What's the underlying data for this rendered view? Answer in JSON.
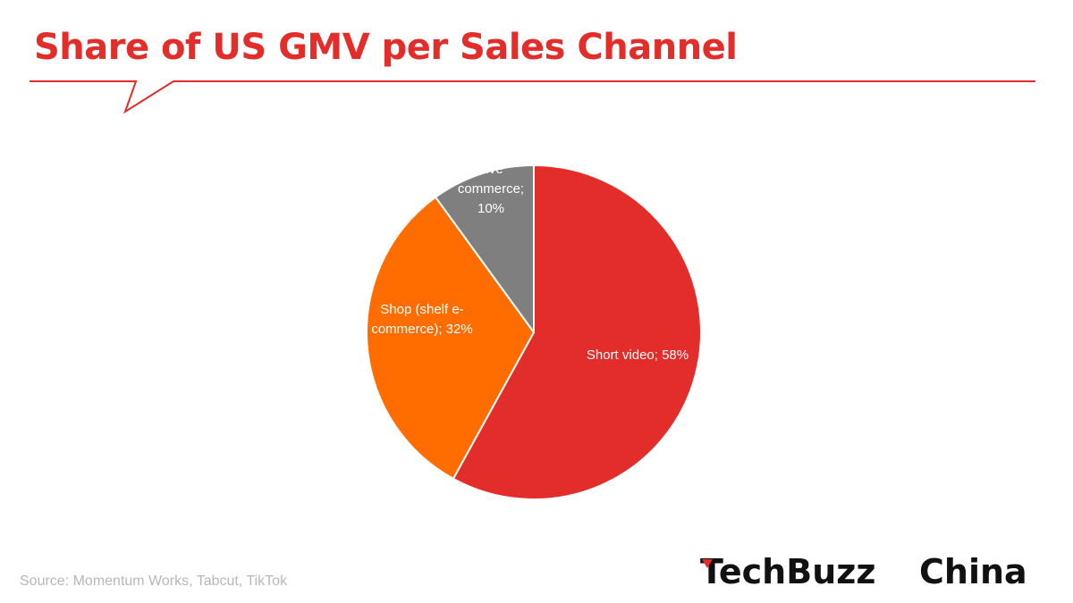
{
  "header": {
    "title": "Share of US GMV per Sales Channel"
  },
  "chart_data": {
    "type": "pie",
    "title": "Share of US GMV per Sales Channel",
    "start_angle_deg": 0,
    "direction": "clockwise",
    "slices": [
      {
        "label_lines": [
          "Short video; 58%"
        ],
        "category": "Short video",
        "value": 58,
        "color": "#e32d2a"
      },
      {
        "label_lines": [
          "Shop (shelf e-",
          "commerce); 32%"
        ],
        "category": "Shop (shelf e-commerce)",
        "value": 32,
        "color": "#ff6d00"
      },
      {
        "label_lines": [
          "Live",
          "commerce;",
          "10%"
        ],
        "category": "Live commerce",
        "value": 10,
        "color": "#7f7f7f"
      }
    ]
  },
  "footer": {
    "source": "Source: Momentum Works, Tabcut, TikTok"
  },
  "logo": {
    "text_part1": "TechBuzz",
    "text_part2": "China",
    "accent_color": "#e32d2a"
  },
  "colors": {
    "accent": "#e32d2a",
    "source_text": "#b7b7b7"
  }
}
